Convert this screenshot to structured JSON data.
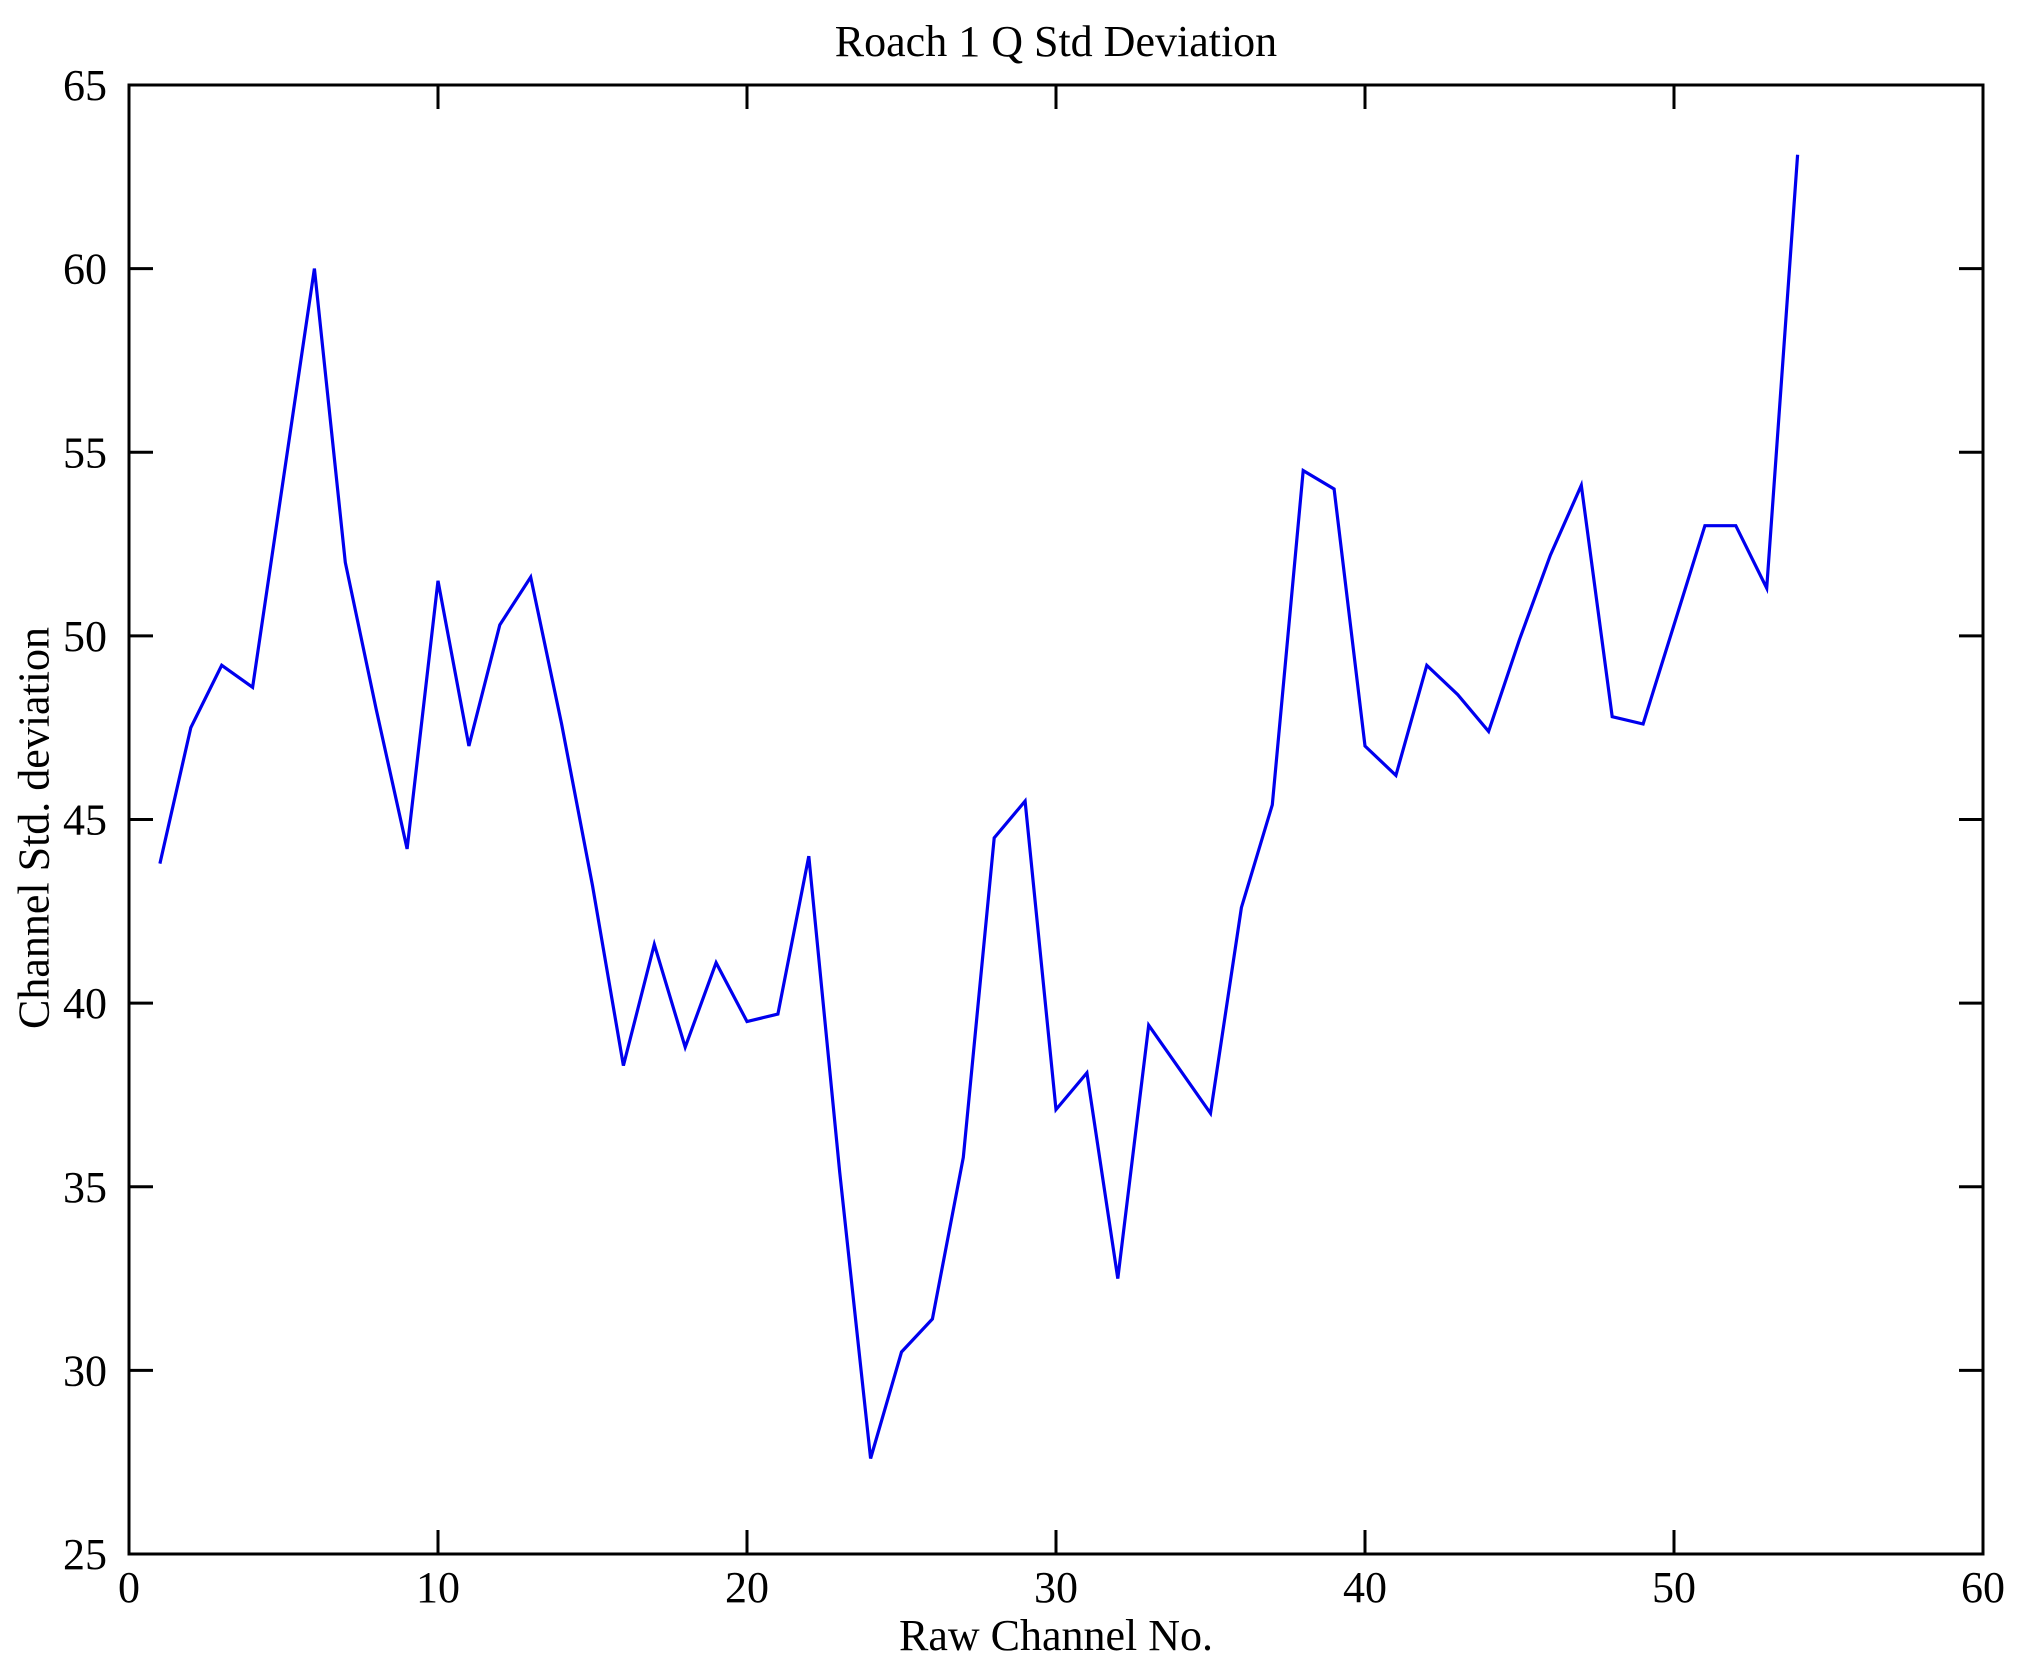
{
  "chart_data": {
    "type": "line",
    "title": "Roach 1 Q Std Deviation",
    "xlabel": "Raw Channel No.",
    "ylabel": "Channel Std. deviation",
    "xlim": [
      0,
      60
    ],
    "ylim": [
      25,
      65
    ],
    "x_ticks": [
      0,
      10,
      20,
      30,
      40,
      50,
      60
    ],
    "y_ticks": [
      25,
      30,
      35,
      40,
      45,
      50,
      55,
      60,
      65
    ],
    "grid": false,
    "legend": false,
    "line_color": "#0000ee",
    "axis_color": "#000000",
    "background_color": "#ffffff",
    "series_name": "Channel Std. deviation vs Raw Channel No.",
    "x": [
      1,
      2,
      3,
      4,
      5,
      6,
      7,
      8,
      9,
      10,
      11,
      12,
      13,
      14,
      15,
      16,
      17,
      18,
      19,
      20,
      21,
      22,
      23,
      24,
      25,
      26,
      27,
      28,
      29,
      30,
      31,
      32,
      33,
      34,
      35,
      36,
      37,
      38,
      39,
      40,
      41,
      42,
      43,
      44,
      45,
      46,
      47,
      48,
      49,
      50,
      51,
      52,
      53,
      54
    ],
    "y": [
      43.8,
      47.5,
      49.2,
      48.6,
      54.3,
      60.0,
      52.0,
      48.0,
      44.2,
      51.5,
      47.0,
      50.3,
      51.6,
      47.6,
      43.2,
      38.3,
      41.6,
      38.8,
      41.1,
      39.5,
      39.7,
      44.0,
      35.4,
      27.6,
      30.5,
      31.4,
      35.8,
      44.5,
      45.5,
      37.1,
      38.1,
      32.5,
      39.4,
      38.2,
      37.0,
      42.6,
      45.4,
      54.5,
      54.0,
      47.0,
      46.2,
      49.2,
      48.4,
      47.4,
      49.9,
      52.2,
      54.1,
      47.8,
      47.6,
      50.3,
      53.0,
      53.0,
      51.3,
      63.1
    ]
  }
}
